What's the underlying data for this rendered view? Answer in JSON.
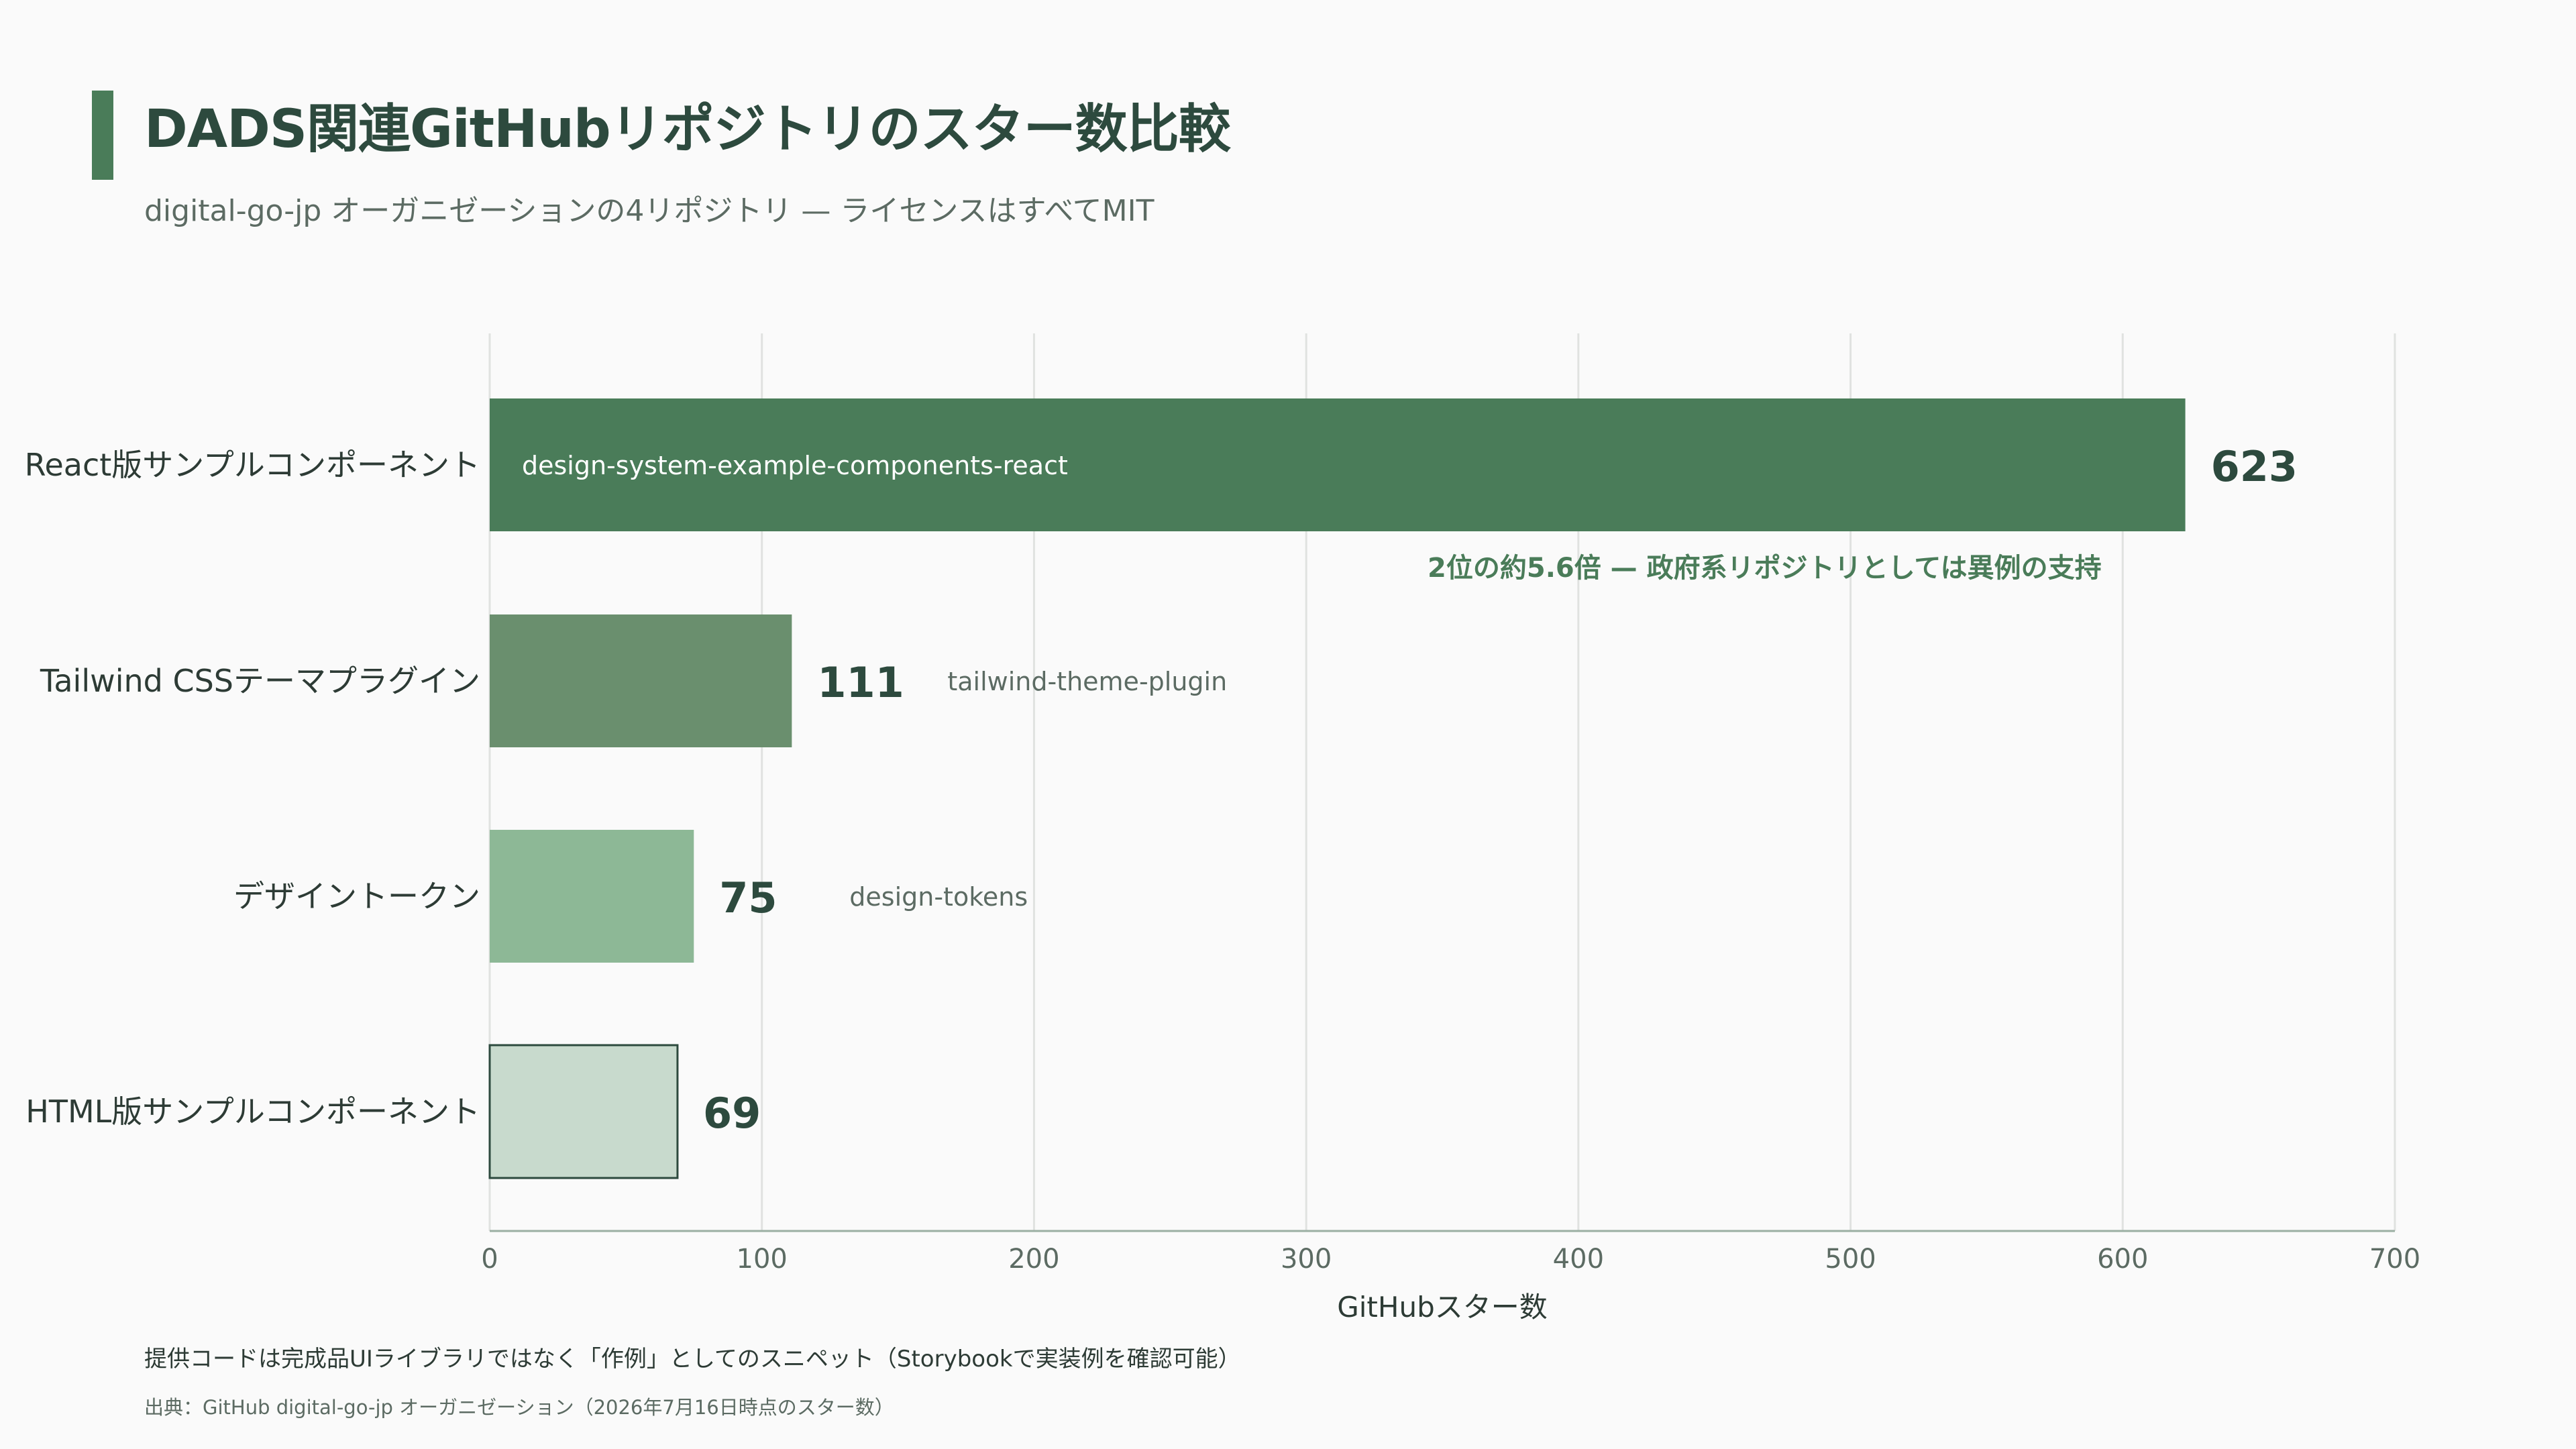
{
  "header": {
    "title": "DADS関連GitHubリポジトリのスター数比較",
    "subtitle": "digital-go-jp オーガニゼーションの4リポジトリ — ライセンスはすべてMIT"
  },
  "chart_data": {
    "type": "bar",
    "orientation": "horizontal",
    "xlabel": "GitHubスター数",
    "xlim": [
      0,
      700
    ],
    "xticks": [
      0,
      100,
      200,
      300,
      400,
      500,
      600,
      700
    ],
    "grid": true,
    "categories": [
      "React版サンプルコンポーネント",
      "Tailwind CSSテーマプラグイン",
      "デザイントークン",
      "HTML版サンプルコンポーネント"
    ],
    "values": [
      623,
      111,
      75,
      69
    ],
    "repo_names": [
      "design-system-example-components-react",
      "tailwind-theme-plugin",
      "design-tokens",
      ""
    ],
    "colors": [
      "#4A7C59",
      "#6A8F6E",
      "#8DB896",
      "#C8DACD"
    ],
    "annotation": "2位の約5.6倍 — 政府系リポジトリとしては異例の支持"
  },
  "footer": {
    "note": "提供コードは完成品UIライブラリではなく「作例」としてのスニペット（Storybookで実装例を確認可能）",
    "source": "出典：GitHub digital-go-jp オーガニゼーション（2026年7月16日時点のスター数）"
  }
}
